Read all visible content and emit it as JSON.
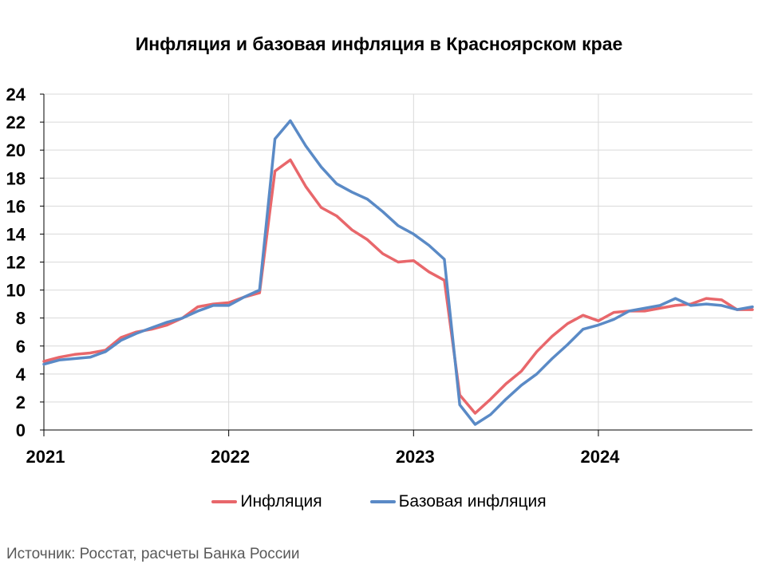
{
  "chart_data": {
    "type": "line",
    "title": "Инфляция и базовая инфляция в Красноярском крае",
    "x_tick_labels": [
      "2021",
      "2022",
      "2023",
      "2024"
    ],
    "x_tick_values": [
      0,
      12,
      24,
      36
    ],
    "xlim": [
      0,
      46
    ],
    "ylim": [
      0,
      24
    ],
    "y_ticks": [
      0,
      2,
      4,
      6,
      8,
      10,
      12,
      14,
      16,
      18,
      20,
      22,
      24
    ],
    "grid": true,
    "legend_position": "bottom",
    "x": [
      0,
      1,
      2,
      3,
      4,
      5,
      6,
      7,
      8,
      9,
      10,
      11,
      12,
      13,
      14,
      15,
      16,
      17,
      18,
      19,
      20,
      21,
      22,
      23,
      24,
      25,
      26,
      27,
      28,
      29,
      30,
      31,
      32,
      33,
      34,
      35,
      36,
      37,
      38,
      39,
      40,
      41,
      42,
      43,
      44,
      45,
      46
    ],
    "series": [
      {
        "name": "Инфляция",
        "color": "#e8676b",
        "values": [
          4.9,
          5.2,
          5.4,
          5.5,
          5.7,
          6.6,
          7.0,
          7.2,
          7.5,
          8.0,
          8.8,
          9.0,
          9.1,
          9.5,
          9.8,
          18.5,
          19.3,
          17.4,
          15.9,
          15.3,
          14.3,
          13.6,
          12.6,
          12.0,
          12.1,
          11.3,
          10.7,
          2.5,
          1.2,
          2.2,
          3.3,
          4.2,
          5.6,
          6.7,
          7.6,
          8.2,
          7.8,
          8.4,
          8.5,
          8.5,
          8.7,
          8.9,
          9.0,
          9.4,
          9.3,
          8.6,
          8.6
        ]
      },
      {
        "name": "Базовая инфляция",
        "color": "#5a8ac6",
        "values": [
          4.7,
          5.0,
          5.1,
          5.2,
          5.6,
          6.4,
          6.9,
          7.3,
          7.7,
          8.0,
          8.5,
          8.9,
          8.9,
          9.5,
          10.0,
          20.8,
          22.1,
          20.3,
          18.8,
          17.6,
          17.0,
          16.5,
          15.6,
          14.6,
          14.0,
          13.2,
          12.2,
          1.8,
          0.4,
          1.1,
          2.2,
          3.2,
          4.0,
          5.1,
          6.1,
          7.2,
          7.5,
          7.9,
          8.5,
          8.7,
          8.9,
          9.4,
          8.9,
          9.0,
          8.9,
          8.6,
          8.8
        ]
      }
    ]
  },
  "source_note": "Источник: Росстат, расчеты Банка России"
}
